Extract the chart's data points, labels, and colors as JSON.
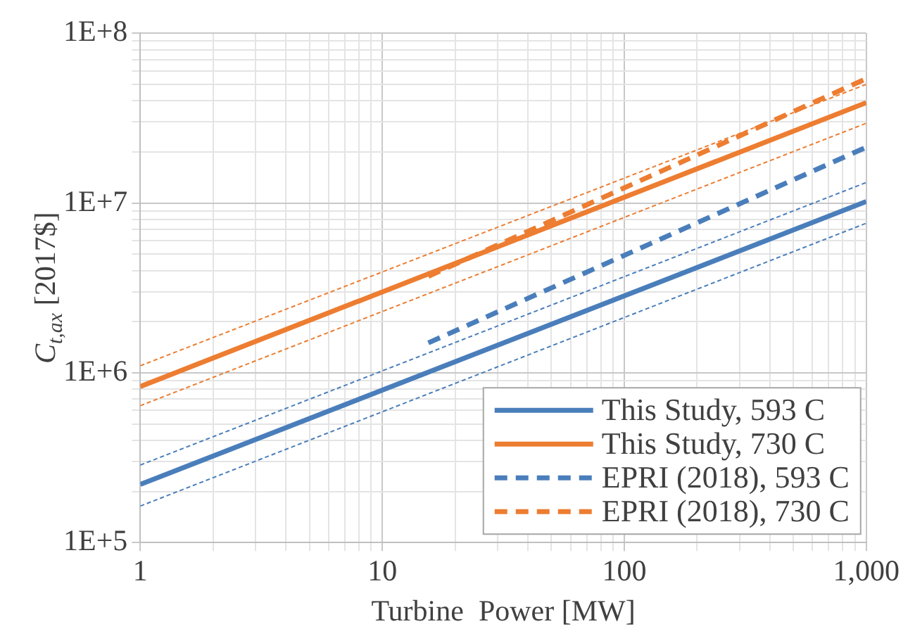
{
  "chart_data": {
    "type": "line",
    "xlabel": "Turbine  Power [MW]",
    "ylabel": "C$_{t,ax}$ [2017$]",
    "log": "xy",
    "grid": true,
    "legend": "bottom right",
    "marker": "none",
    "xlim": [
      1,
      1000
    ],
    "ylim": [
      100000,
      100000000
    ],
    "xticks": [
      1,
      {
        "value": 2,
        "label": null
      },
      {
        "value": 3,
        "label": null
      },
      {
        "value": 4,
        "label": null
      },
      {
        "value": 5,
        "label": null
      },
      {
        "value": 6,
        "label": null
      },
      {
        "value": 7,
        "label": null
      },
      {
        "value": 8,
        "label": null
      },
      {
        "value": 9,
        "label": null
      },
      10,
      {
        "value": 20,
        "label": null
      },
      {
        "value": 30,
        "label": null
      },
      {
        "value": 40,
        "label": null
      },
      {
        "value": 50,
        "label": null
      },
      {
        "value": 60,
        "label": null
      },
      {
        "value": 70,
        "label": null
      },
      {
        "value": 80,
        "label": null
      },
      {
        "value": 90,
        "label": null
      },
      100,
      {
        "value": 200,
        "label": null
      },
      {
        "value": 300,
        "label": null
      },
      {
        "value": 400,
        "label": null
      },
      {
        "value": 500,
        "label": null
      },
      {
        "value": 600,
        "label": null
      },
      {
        "value": 700,
        "label": null
      },
      {
        "value": 800,
        "label": null
      },
      {
        "value": 900,
        "label": null
      },
      {
        "value": 1000,
        "label": "1,000"
      }
    ],
    "yticks": [
      {
        "value": 100000,
        "label": "1E+5"
      },
      {
        "value": 200000,
        "label": null
      },
      {
        "value": 300000,
        "label": null
      },
      {
        "value": 400000,
        "label": null
      },
      {
        "value": 500000,
        "label": null
      },
      {
        "value": 600000,
        "label": null
      },
      {
        "value": 700000,
        "label": null
      },
      {
        "value": 800000,
        "label": null
      },
      {
        "value": 900000,
        "label": null
      },
      {
        "value": 1000000,
        "label": "1E+6"
      },
      {
        "value": 2000000,
        "label": null
      },
      {
        "value": 3000000,
        "label": null
      },
      {
        "value": 4000000,
        "label": null
      },
      {
        "value": 5000000,
        "label": null
      },
      {
        "value": 6000000,
        "label": null
      },
      {
        "value": 7000000,
        "label": null
      },
      {
        "value": 8000000,
        "label": null
      },
      {
        "value": 9000000,
        "label": null
      },
      {
        "value": 10000000,
        "label": "1E+7"
      },
      {
        "value": 20000000,
        "label": null
      },
      {
        "value": 30000000,
        "label": null
      },
      {
        "value": 40000000,
        "label": null
      },
      {
        "value": 50000000,
        "label": null
      },
      {
        "value": 60000000,
        "label": null
      },
      {
        "value": 70000000,
        "label": null
      },
      {
        "value": 80000000,
        "label": null
      },
      {
        "value": 90000000,
        "label": null
      },
      {
        "value": 100000000,
        "label": "1E+8"
      }
    ],
    "series": [
      {
        "name": "This Study, 593 C",
        "color": "#4a7ebb",
        "line_style": "solid",
        "x": [
          1,
          1000
        ],
        "values": [
          220000,
          10200000
        ]
      },
      {
        "name": "This Study, 730 C",
        "color": "#ed7d31",
        "line_style": "solid",
        "x": [
          1,
          1000
        ],
        "values": [
          830000,
          39000000
        ]
      },
      {
        "name": "EPRI (2018), 593 C",
        "color": "#4a7ebb",
        "line_style": "dashed",
        "x": [
          15.5,
          1000
        ],
        "values": [
          1500000,
          21300000
        ]
      },
      {
        "name": "EPRI (2018), 730 C",
        "color": "#ed7d31",
        "line_style": "dashed",
        "x": [
          15.5,
          1000
        ],
        "values": [
          3700000,
          54000000
        ]
      },
      {
        "color": "#4a7ebb",
        "line_style": "dotted",
        "x": [
          1,
          1000
        ],
        "values": [
          286000,
          13200000
        ]
      },
      {
        "color": "#4a7ebb",
        "line_style": "dotted",
        "x": [
          1,
          1000
        ],
        "values": [
          164000,
          7600000
        ]
      },
      {
        "color": "#ed7d31",
        "line_style": "dotted",
        "x": [
          1,
          1000
        ],
        "values": [
          1100000,
          50000000
        ]
      },
      {
        "color": "#ed7d31",
        "line_style": "dotted",
        "x": [
          1,
          1000
        ],
        "values": [
          640000,
          29500000
        ]
      }
    ]
  }
}
